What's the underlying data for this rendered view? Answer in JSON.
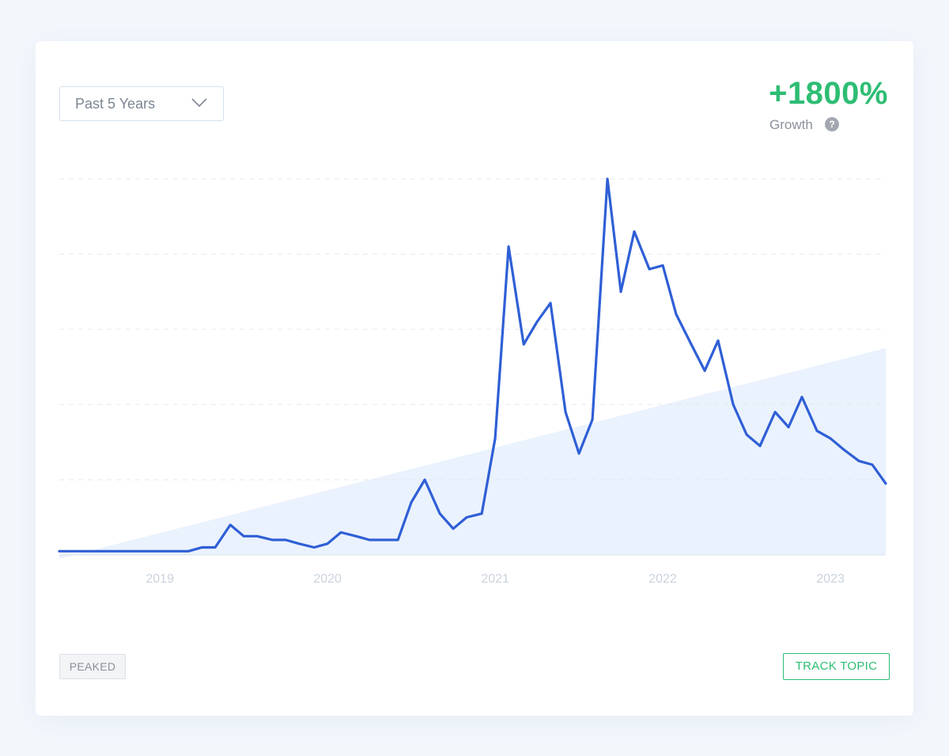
{
  "timeframe": {
    "selected": "Past 5 Years"
  },
  "growth": {
    "value": "+1800%",
    "label": "Growth",
    "help_icon": "question-circle-icon"
  },
  "status_badge": "PEAKED",
  "track_button": "TRACK TOPIC",
  "colors": {
    "line": "#2f5fd6",
    "trend_fill": "#e3eefc",
    "accent_green": "#2dbd73"
  },
  "chart_data": {
    "type": "line",
    "x_axis": {
      "tick_labels": [
        "2019",
        "2020",
        "2021",
        "2022",
        "2023"
      ],
      "tick_dates": [
        2019.0,
        2020.0,
        2021.0,
        2022.0,
        2023.0
      ],
      "range": [
        2018.4,
        2023.33
      ]
    },
    "y_axis": {
      "range": [
        0,
        100
      ],
      "gridlines": [
        0,
        20,
        40,
        60,
        80,
        100
      ],
      "tick_labels": []
    },
    "series": [
      {
        "x": [
          2018.4,
          2018.6,
          2018.8,
          2019.0,
          2019.17,
          2019.25,
          2019.33,
          2019.42,
          2019.5,
          2019.58,
          2019.67,
          2019.75,
          2019.83,
          2019.92,
          2020.0,
          2020.08,
          2020.17,
          2020.25,
          2020.33,
          2020.42,
          2020.5,
          2020.58,
          2020.67,
          2020.75,
          2020.83,
          2020.92,
          2021.0,
          2021.08,
          2021.17,
          2021.25,
          2021.33,
          2021.42,
          2021.5,
          2021.58,
          2021.67,
          2021.75,
          2021.83,
          2021.92,
          2022.0,
          2022.08,
          2022.17,
          2022.25,
          2022.33,
          2022.42,
          2022.5,
          2022.58,
          2022.67,
          2022.75,
          2022.83,
          2022.92,
          2023.0,
          2023.08,
          2023.17,
          2023.25,
          2023.33
        ],
        "y": [
          1,
          1,
          1,
          1,
          1,
          2,
          2,
          8,
          5,
          5,
          4,
          4,
          3,
          2,
          3,
          6,
          5,
          4,
          4,
          4,
          14,
          20,
          11,
          7,
          10,
          11,
          31,
          82,
          56,
          62,
          67,
          38,
          27,
          36,
          100,
          70,
          86,
          76,
          77,
          64,
          56,
          49,
          57,
          40,
          32,
          29,
          38,
          34,
          42,
          33,
          31,
          28,
          25,
          24,
          19
        ]
      }
    ],
    "trend": {
      "type": "area",
      "x": [
        2018.4,
        2023.33
      ],
      "y": [
        -1,
        55
      ]
    },
    "legend": "none",
    "grid": true
  }
}
